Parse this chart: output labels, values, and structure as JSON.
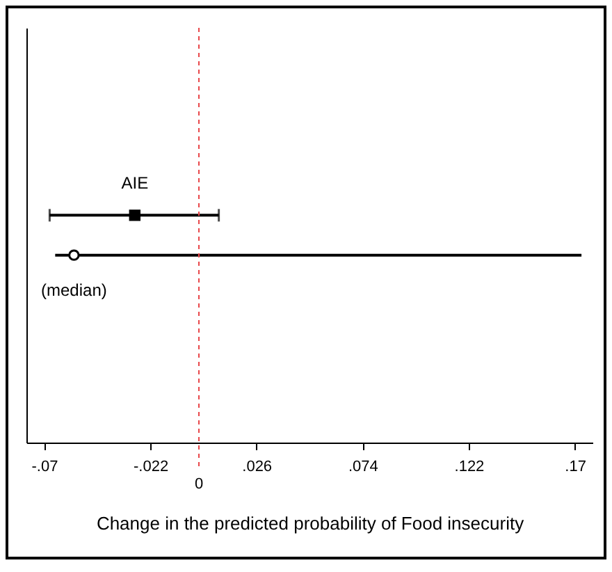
{
  "chart_data": {
    "type": "scatter",
    "orientation": "horizontal",
    "xlabel": "Change in the predicted probability of Food insecurity",
    "categories": [
      null,
      null
    ],
    "series": [
      {
        "name": "AIE",
        "color": "#000000",
        "marker": "square",
        "values": [
          -0.029,
          null
        ],
        "errors": [
          [
            -0.0675,
            0.009
          ],
          null
        ]
      },
      {
        "name": "(median)",
        "color": "#000000",
        "marker": "circle",
        "values": [
          null,
          -0.0565
        ],
        "errors": [
          null,
          [
            -0.065,
            0.173
          ]
        ]
      }
    ],
    "xlim": [
      -0.078,
      0.178
    ],
    "xticks": [
      {
        "value": -0.07,
        "label": "-.07"
      },
      {
        "value": -0.022,
        "label": "-.022"
      },
      {
        "value": 0.026,
        "label": ".026"
      },
      {
        "value": 0.074,
        "label": ".074"
      },
      {
        "value": 0.122,
        "label": ".122"
      },
      {
        "value": 0.17,
        "label": ".17"
      }
    ],
    "ref_lines": [
      {
        "axis": "x",
        "value": 0,
        "label": "0",
        "color": "#e8474a",
        "line_style": "dashed"
      }
    ],
    "tick_labels": "x",
    "grid": false
  }
}
